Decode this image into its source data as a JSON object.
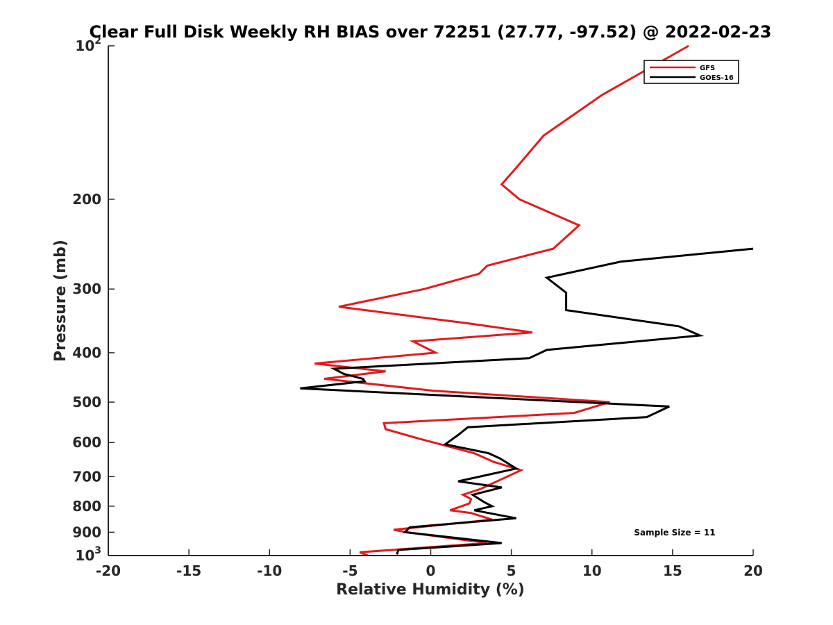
{
  "chart_data": {
    "type": "line",
    "title": "Clear Full Disk Weekly RH BIAS over 72251 (27.77, -97.52) @ 2022-02-23",
    "xlabel": "Relative Humidity (%)",
    "ylabel": "Pressure (mb)",
    "xlim": [
      -20,
      20
    ],
    "ylim": [
      100,
      1000
    ],
    "y_scale": "log",
    "y_reversed": true,
    "grid": false,
    "legend_position": "top-right",
    "x_ticks": [
      -20,
      -15,
      -10,
      -5,
      0,
      5,
      10,
      15,
      20
    ],
    "x_tick_labels": [
      "-20",
      "-15",
      "-10",
      "-5",
      "0",
      "5",
      "10",
      "15",
      "20"
    ],
    "y_ticks": [
      100,
      200,
      300,
      400,
      500,
      600,
      700,
      800,
      900,
      1000
    ],
    "y_tick_labels": [
      {
        "base": "10",
        "exp": "2"
      },
      {
        "base": "200",
        "exp": ""
      },
      {
        "base": "300",
        "exp": ""
      },
      {
        "base": "400",
        "exp": ""
      },
      {
        "base": "500",
        "exp": ""
      },
      {
        "base": "600",
        "exp": ""
      },
      {
        "base": "700",
        "exp": ""
      },
      {
        "base": "800",
        "exp": ""
      },
      {
        "base": "900",
        "exp": ""
      },
      {
        "base": "10",
        "exp": "3"
      }
    ],
    "annotation": "Sample Size = 11",
    "series": [
      {
        "name": "GFS",
        "color": "#e31a1c",
        "points": [
          [
            16.0,
            100
          ],
          [
            10.6,
            125
          ],
          [
            7.0,
            150
          ],
          [
            5.2,
            175
          ],
          [
            4.4,
            187
          ],
          [
            5.5,
            200
          ],
          [
            9.2,
            225
          ],
          [
            7.6,
            250
          ],
          [
            3.5,
            270
          ],
          [
            3.0,
            280
          ],
          [
            -0.4,
            300
          ],
          [
            -5.7,
            325
          ],
          [
            2.2,
            350
          ],
          [
            6.3,
            365
          ],
          [
            -1.1,
            380
          ],
          [
            0.3,
            400
          ],
          [
            -7.2,
            420
          ],
          [
            -2.8,
            435
          ],
          [
            -6.6,
            450
          ],
          [
            0.2,
            475
          ],
          [
            11.1,
            500
          ],
          [
            8.9,
            525
          ],
          [
            -2.9,
            550
          ],
          [
            -2.8,
            565
          ],
          [
            -0.7,
            590
          ],
          [
            2.7,
            630
          ],
          [
            3.9,
            655
          ],
          [
            5.6,
            680
          ],
          [
            3.1,
            740
          ],
          [
            2.0,
            760
          ],
          [
            2.5,
            775
          ],
          [
            2.4,
            790
          ],
          [
            1.2,
            815
          ],
          [
            2.5,
            825
          ],
          [
            3.8,
            850
          ],
          [
            -2.3,
            890
          ],
          [
            -1.5,
            900
          ],
          [
            3.5,
            945
          ],
          [
            -4.4,
            985
          ],
          [
            -3.9,
            1000
          ]
        ]
      },
      {
        "name": "GOES-16",
        "color": "#000000",
        "points": [
          [
            20.0,
            250
          ],
          [
            11.8,
            265
          ],
          [
            7.2,
            285
          ],
          [
            8.4,
            305
          ],
          [
            8.4,
            330
          ],
          [
            15.4,
            355
          ],
          [
            16.7,
            370
          ],
          [
            7.2,
            395
          ],
          [
            6.1,
            410
          ],
          [
            -6.0,
            430
          ],
          [
            -5.4,
            440
          ],
          [
            -4.2,
            450
          ],
          [
            -4.1,
            455
          ],
          [
            -8.1,
            470
          ],
          [
            14.8,
            510
          ],
          [
            13.4,
            535
          ],
          [
            2.3,
            560
          ],
          [
            1.7,
            580
          ],
          [
            0.9,
            605
          ],
          [
            3.6,
            630
          ],
          [
            4.3,
            645
          ],
          [
            5.3,
            675
          ],
          [
            1.7,
            715
          ],
          [
            4.4,
            735
          ],
          [
            2.6,
            760
          ],
          [
            3.3,
            785
          ],
          [
            3.8,
            800
          ],
          [
            2.7,
            815
          ],
          [
            5.3,
            845
          ],
          [
            -1.3,
            880
          ],
          [
            -1.6,
            900
          ],
          [
            4.4,
            945
          ],
          [
            -2.0,
            975
          ],
          [
            -2.1,
            995
          ]
        ]
      }
    ]
  }
}
